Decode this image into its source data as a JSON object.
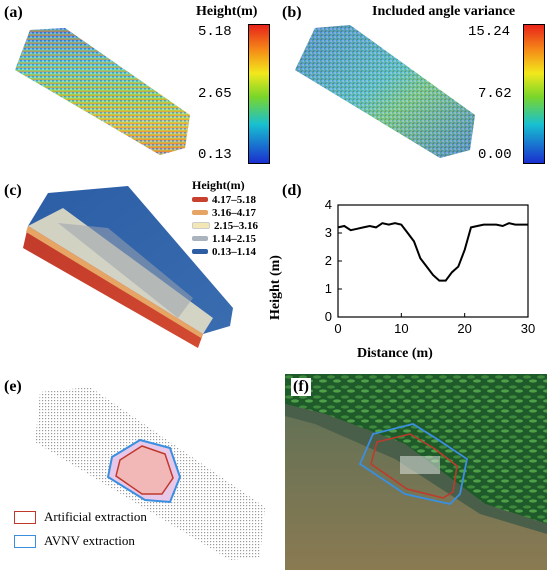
{
  "panels": {
    "a": {
      "label": "(a)",
      "colorbar_title": "Height(m)",
      "ticks": [
        "5.18",
        "2.65",
        "0.13"
      ]
    },
    "b": {
      "label": "(b)",
      "colorbar_title": "Included angle variance",
      "ticks": [
        "15.24",
        "7.62",
        "0.00"
      ]
    },
    "c": {
      "label": "(c)",
      "legend_title": "Height(m)",
      "legend_items": [
        {
          "label": "4.17–5.18",
          "color": "#c8402e"
        },
        {
          "label": "3.16–4.17",
          "color": "#e6a465"
        },
        {
          "label": "2.15–3.16",
          "color": "#f3e7b5"
        },
        {
          "label": "1.14–2.15",
          "color": "#a9b2bd"
        },
        {
          "label": "0.13–1.14",
          "color": "#2d5ea3"
        }
      ]
    },
    "d": {
      "label": "(d)"
    },
    "e": {
      "label": "(e)",
      "legend_items": [
        {
          "label": "Artificial extraction",
          "color": "#c0392b"
        },
        {
          "label": "AVNV extraction",
          "color": "#3a8fe0"
        }
      ]
    },
    "f": {
      "label": "(f)"
    }
  },
  "chart_data": {
    "type": "line",
    "xlabel": "Distance (m)",
    "ylabel": "Height (m)",
    "xlim": [
      0,
      30
    ],
    "ylim": [
      0,
      4
    ],
    "xticks": [
      "0",
      "10",
      "20",
      "30"
    ],
    "yticks": [
      "0",
      "1",
      "2",
      "3",
      "4"
    ],
    "x": [
      0,
      1,
      2,
      3,
      4,
      5,
      6,
      7,
      8,
      9,
      10,
      11,
      12,
      13,
      14,
      15,
      16,
      17,
      18,
      19,
      20,
      21,
      22,
      23,
      24,
      25,
      26,
      27,
      28,
      29,
      30
    ],
    "y": [
      3.2,
      3.25,
      3.1,
      3.15,
      3.2,
      3.25,
      3.2,
      3.35,
      3.3,
      3.35,
      3.3,
      3.0,
      2.7,
      2.1,
      1.8,
      1.5,
      1.3,
      1.3,
      1.6,
      1.8,
      2.4,
      3.2,
      3.25,
      3.3,
      3.3,
      3.3,
      3.25,
      3.35,
      3.3,
      3.3,
      3.3
    ]
  }
}
